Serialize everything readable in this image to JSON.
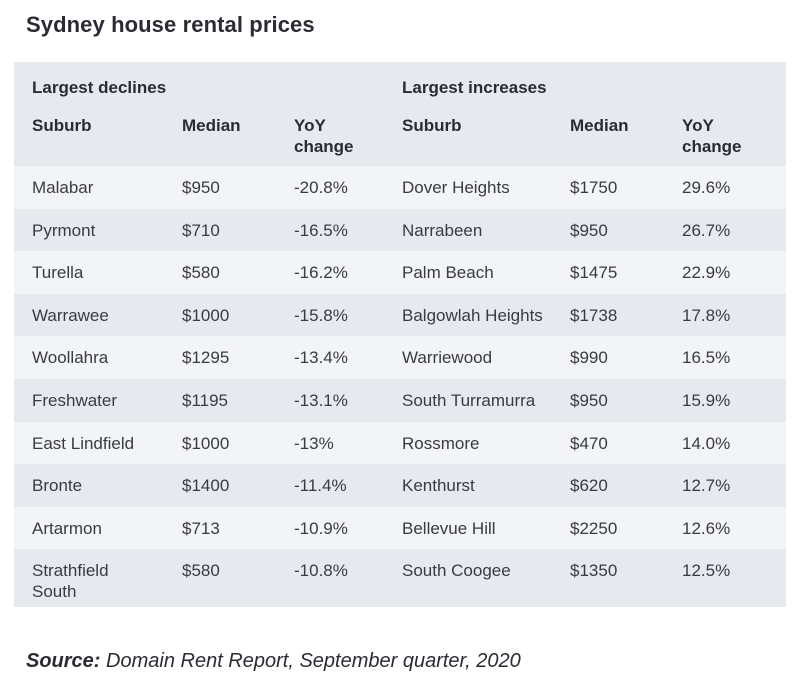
{
  "title": "Sydney house rental prices",
  "sections": {
    "declines": "Largest declines",
    "increases": "Largest increases"
  },
  "headers": {
    "suburb": "Suburb",
    "median": "Median",
    "yoy_line1": "YoY",
    "yoy_line2": "change"
  },
  "rows": [
    {
      "d_suburb": "Malabar",
      "d_median": "$950",
      "d_yoy": "-20.8%",
      "i_suburb": "Dover Heights",
      "i_median": "$1750",
      "i_yoy": "29.6%"
    },
    {
      "d_suburb": "Pyrmont",
      "d_median": "$710",
      "d_yoy": "-16.5%",
      "i_suburb": "Narrabeen",
      "i_median": "$950",
      "i_yoy": "26.7%"
    },
    {
      "d_suburb": "Turella",
      "d_median": "$580",
      "d_yoy": "-16.2%",
      "i_suburb": "Palm Beach",
      "i_median": "$1475",
      "i_yoy": "22.9%"
    },
    {
      "d_suburb": "Warrawee",
      "d_median": "$1000",
      "d_yoy": "-15.8%",
      "i_suburb": "Balgowlah Heights",
      "i_median": "$1738",
      "i_yoy": "17.8%"
    },
    {
      "d_suburb": "Woollahra",
      "d_median": "$1295",
      "d_yoy": "-13.4%",
      "i_suburb": "Warriewood",
      "i_median": "$990",
      "i_yoy": "16.5%"
    },
    {
      "d_suburb": "Freshwater",
      "d_median": "$1195",
      "d_yoy": "-13.1%",
      "i_suburb": "South Turramurra",
      "i_median": "$950",
      "i_yoy": "15.9%"
    },
    {
      "d_suburb": "East Lindfield",
      "d_median": "$1000",
      "d_yoy": "-13%",
      "i_suburb": "Rossmore",
      "i_median": "$470",
      "i_yoy": "14.0%"
    },
    {
      "d_suburb": "Bronte",
      "d_median": "$1400",
      "d_yoy": "-11.4%",
      "i_suburb": "Kenthurst",
      "i_median": "$620",
      "i_yoy": "12.7%"
    },
    {
      "d_suburb": "Artarmon",
      "d_median": "$713",
      "d_yoy": "-10.9%",
      "i_suburb": "Bellevue Hill",
      "i_median": "$2250",
      "i_yoy": "12.6%"
    },
    {
      "d_suburb": "Strathfield South",
      "d_median": "$580",
      "d_yoy": "-10.8%",
      "i_suburb": "South Coogee",
      "i_median": "$1350",
      "i_yoy": "12.5%"
    }
  ],
  "source": {
    "label": "Source:",
    "text": " Domain Rent Report, September quarter, 2020"
  },
  "colors": {
    "band": "#e6eaee",
    "stripe": "#f2f4f6",
    "text": "#2b2b33"
  }
}
